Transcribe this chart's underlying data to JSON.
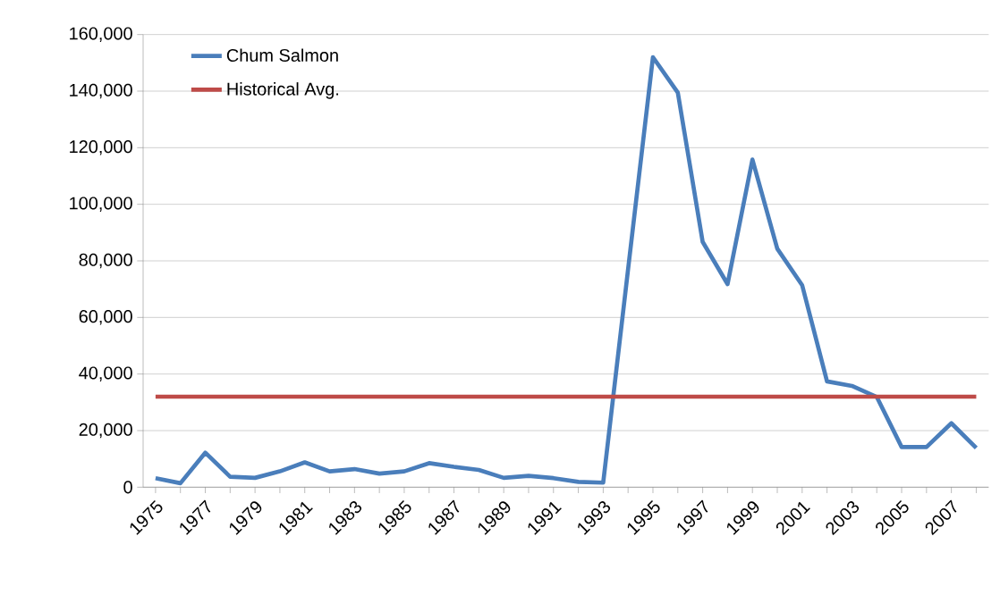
{
  "chart_data": {
    "type": "line",
    "categories": [
      "1975",
      null,
      "1977",
      null,
      "1979",
      null,
      "1981",
      null,
      "1983",
      null,
      "1985",
      null,
      "1987",
      null,
      "1989",
      null,
      "1991",
      null,
      "1993",
      null,
      "1995",
      null,
      "1997",
      null,
      "1999",
      null,
      "2001",
      null,
      "2003",
      null,
      "2005",
      null,
      "2007",
      null
    ],
    "series": [
      {
        "name": "Chum Salmon",
        "color": "#4a7ebb",
        "values": [
          3200,
          1400,
          12200,
          3700,
          3300,
          5600,
          8800,
          5600,
          6400,
          4800,
          5600,
          8500,
          7200,
          6100,
          3300,
          4000,
          3200,
          1900,
          1600,
          77000,
          152000,
          139500,
          86700,
          71800,
          115800,
          84300,
          71400,
          37400,
          35800,
          31900,
          14200,
          14200,
          22600,
          13900
        ]
      },
      {
        "name": "Historical Avg.",
        "color": "#be4b48",
        "values": [
          32000,
          32000,
          32000,
          32000,
          32000,
          32000,
          32000,
          32000,
          32000,
          32000,
          32000,
          32000,
          32000,
          32000,
          32000,
          32000,
          32000,
          32000,
          32000,
          32000,
          32000,
          32000,
          32000,
          32000,
          32000,
          32000,
          32000,
          32000,
          32000,
          32000,
          32000,
          32000,
          32000,
          32000
        ]
      }
    ],
    "ylim": [
      0,
      160000
    ],
    "yticks": [
      {
        "value": 0,
        "label": "0"
      },
      {
        "value": 20000,
        "label": "20,000"
      },
      {
        "value": 40000,
        "label": "40,000"
      },
      {
        "value": 60000,
        "label": "60,000"
      },
      {
        "value": 80000,
        "label": "80,000"
      },
      {
        "value": 100000,
        "label": "100,000"
      },
      {
        "value": 120000,
        "label": "120,000"
      },
      {
        "value": 140000,
        "label": "140,000"
      },
      {
        "value": 160000,
        "label": "160,000"
      }
    ],
    "grid": "y",
    "legend": "top left",
    "marker": "none",
    "line_style": "solid"
  }
}
